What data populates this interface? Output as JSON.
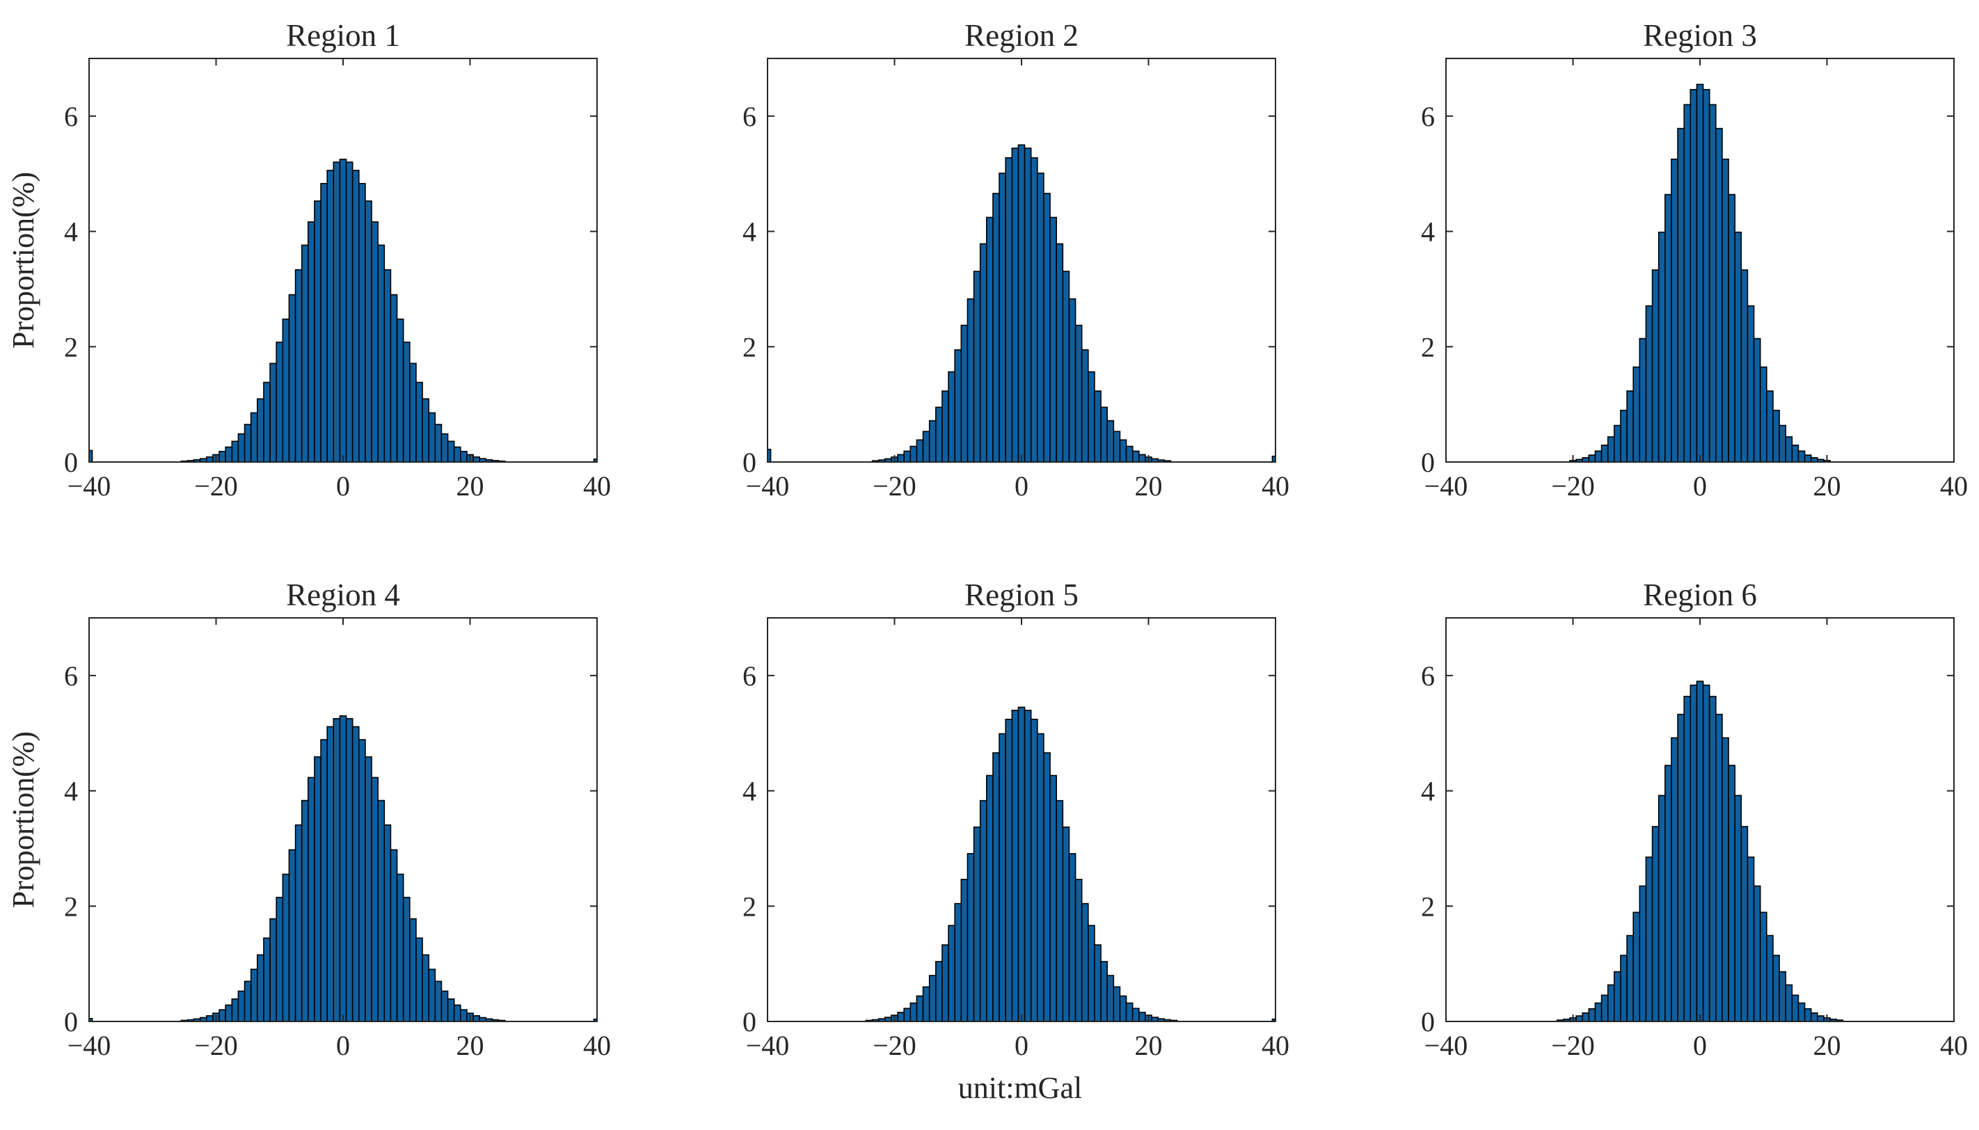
{
  "colors": {
    "bar_fill": "#0E5F9F",
    "bar_edge": "#000000",
    "axis": "#262626",
    "background": "#FFFFFF"
  },
  "figure": {
    "xlabel": "unit:mGal"
  },
  "chart_data": [
    {
      "type": "bar",
      "title": "Region 1",
      "xlabel": "",
      "ylabel": "Proportion(%)",
      "xlim": [
        -40,
        40
      ],
      "ylim": [
        0,
        7
      ],
      "xticks": [
        -40,
        -20,
        0,
        20,
        40
      ],
      "yticks": [
        0,
        2,
        4,
        6
      ],
      "bin_width": 1,
      "grid": false,
      "peak": 5.25,
      "sigma": 7.2,
      "tail_cutoff": 35,
      "edge_values": {
        "-40": 0.2,
        "40": 0.05
      }
    },
    {
      "type": "bar",
      "title": "Region 2",
      "xlabel": "",
      "ylabel": "",
      "xlim": [
        -40,
        40
      ],
      "ylim": [
        0,
        7
      ],
      "xticks": [
        -40,
        -20,
        0,
        20,
        40
      ],
      "yticks": [
        0,
        2,
        4,
        6
      ],
      "bin_width": 1,
      "grid": false,
      "peak": 5.5,
      "sigma": 6.8,
      "tail_cutoff": 36,
      "edge_values": {
        "-40": 0.22,
        "40": 0.1
      }
    },
    {
      "type": "bar",
      "title": "Region 3",
      "xlabel": "",
      "ylabel": "",
      "xlim": [
        -40,
        40
      ],
      "ylim": [
        0,
        7
      ],
      "xticks": [
        -40,
        -20,
        0,
        20,
        40
      ],
      "yticks": [
        0,
        2,
        4,
        6
      ],
      "bin_width": 1,
      "grid": false,
      "peak": 6.55,
      "sigma": 5.9,
      "tail_cutoff": 26,
      "edge_values": {}
    },
    {
      "type": "bar",
      "title": "Region 4",
      "xlabel": "",
      "ylabel": "Proportion(%)",
      "xlim": [
        -40,
        40
      ],
      "ylim": [
        0,
        7
      ],
      "xticks": [
        -40,
        -20,
        0,
        20,
        40
      ],
      "yticks": [
        0,
        2,
        4,
        6
      ],
      "bin_width": 1,
      "grid": false,
      "peak": 5.3,
      "sigma": 7.3,
      "tail_cutoff": 32,
      "edge_values": {
        "-40": 0.05,
        "40": 0.04
      }
    },
    {
      "type": "bar",
      "title": "Region 5",
      "xlabel": "",
      "ylabel": "",
      "xlim": [
        -40,
        40
      ],
      "ylim": [
        0,
        7
      ],
      "xticks": [
        -40,
        -20,
        0,
        20,
        40
      ],
      "yticks": [
        0,
        2,
        4,
        6
      ],
      "bin_width": 1,
      "grid": false,
      "peak": 5.45,
      "sigma": 7.0,
      "tail_cutoff": 31,
      "edge_values": {
        "40": 0.04
      }
    },
    {
      "type": "bar",
      "title": "Region 6",
      "xlabel": "",
      "ylabel": "",
      "xlim": [
        -40,
        40
      ],
      "ylim": [
        0,
        7
      ],
      "xticks": [
        -40,
        -20,
        0,
        20,
        40
      ],
      "yticks": [
        0,
        2,
        4,
        6
      ],
      "bin_width": 1,
      "grid": false,
      "peak": 5.9,
      "sigma": 6.5,
      "tail_cutoff": 29,
      "edge_values": {}
    }
  ]
}
